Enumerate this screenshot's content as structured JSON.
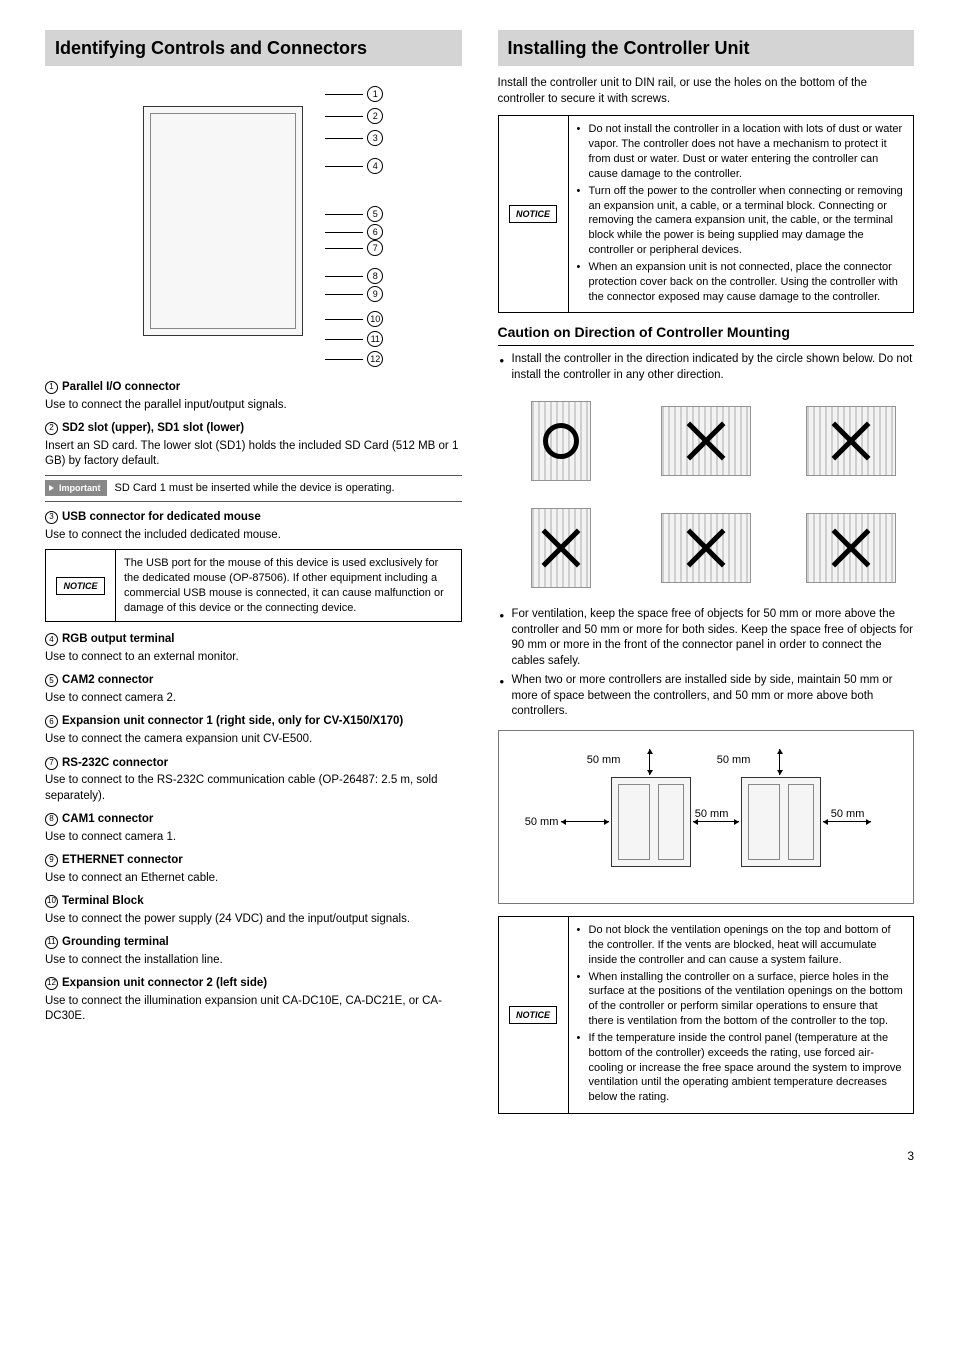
{
  "colors": {
    "heading_bg": "#d4d4d4",
    "text": "#000000",
    "notice_tag_bg": "#888888"
  },
  "left": {
    "heading": "Identifying Controls and Connectors",
    "callout_numbers": [
      "1",
      "2",
      "3",
      "4",
      "5",
      "6",
      "7",
      "8",
      "9",
      "10",
      "11",
      "12"
    ],
    "items": [
      {
        "num": "1",
        "title": "Parallel I/O connector",
        "desc": "Use to connect the parallel input/output signals."
      },
      {
        "num": "2",
        "title": "SD2 slot (upper), SD1 slot (lower)",
        "desc": "Insert an SD card.\nThe lower slot (SD1) holds the included SD Card (512 MB or 1 GB) by factory default.",
        "important": "SD Card 1 must be inserted while the device is operating.",
        "divider_after": true
      },
      {
        "num": "3",
        "title": "USB connector for dedicated mouse",
        "desc": "Use to connect the included dedicated mouse.",
        "notice": "The USB port for the mouse of this device is used exclusively for the dedicated mouse (OP-87506).\nIf other equipment including a commercial USB mouse is connected, it can cause malfunction or damage of this device or the connecting device."
      },
      {
        "num": "4",
        "title": "RGB output terminal",
        "desc": "Use to connect to an external monitor."
      },
      {
        "num": "5",
        "title": "CAM2 connector",
        "desc": "Use to connect camera 2."
      },
      {
        "num": "6",
        "title": "Expansion unit connector 1 (right side, only for CV-X150/X170)",
        "desc": "Use to connect the camera expansion unit CV-E500."
      },
      {
        "num": "7",
        "title": "RS-232C connector",
        "desc": "Use to connect to the RS-232C communication cable (OP-26487: 2.5 m, sold separately)."
      },
      {
        "num": "8",
        "title": "CAM1 connector",
        "desc": "Use to connect camera 1."
      },
      {
        "num": "9",
        "title": "ETHERNET connector",
        "desc": "Use to connect an Ethernet cable."
      },
      {
        "num": "10",
        "title": "Terminal Block",
        "desc": "Use to connect the power supply (24 VDC) and the input/output signals."
      },
      {
        "num": "11",
        "title": "Grounding terminal",
        "desc": "Use to connect the installation line."
      },
      {
        "num": "12",
        "title": "Expansion unit connector 2 (left side)",
        "desc": "Use to connect the illumination expansion unit CA-DC10E, CA-DC21E, or CA-DC30E."
      }
    ],
    "important_label": "Important",
    "notice_label": "NOTICE"
  },
  "right": {
    "heading": "Installing the Controller Unit",
    "intro": "Install the controller unit to DIN rail, or use the holes on the bottom of the controller to secure it with screws.",
    "notice1_bullets": [
      "Do not install the controller in a location with lots of dust or water vapor.\nThe controller does not have a mechanism to protect it from dust or water. Dust or water entering the controller can cause damage to the controller.",
      "Turn off the power to the controller when connecting or removing an expansion unit, a cable, or a terminal block. Connecting or removing the camera expansion unit, the cable, or the terminal block while the power is being supplied may damage the controller or peripheral devices.",
      "When an expansion unit is not connected, place the connector protection cover back on the controller. Using the controller with the connector exposed may cause damage to the controller."
    ],
    "subhead": "Caution on Direction of Controller Mounting",
    "mount_bullet": "Install the controller in the direction indicated by the circle shown below. Do not install the controller in any other direction.",
    "orientations": [
      {
        "mark": "ok",
        "shape": "tall"
      },
      {
        "mark": "x",
        "shape": "wide"
      },
      {
        "mark": "x",
        "shape": "wide"
      },
      {
        "mark": "x",
        "shape": "tall"
      },
      {
        "mark": "x",
        "shape": "wide"
      },
      {
        "mark": "x",
        "shape": "wide"
      }
    ],
    "vent_bullets": [
      "For ventilation, keep the space free of objects for 50 mm or more above the controller and 50 mm or more for both sides. Keep the space free of objects for 90 mm or more in the front of the connector panel in order to connect the cables safely.",
      "When two or more controllers are installed side by side, maintain 50 mm or more of space between the controllers, and 50 mm or more above both controllers."
    ],
    "spacing_labels": {
      "top_a": "50 mm",
      "top_b": "50 mm",
      "left": "50 mm",
      "mid": "50 mm",
      "right": "50 mm"
    },
    "notice2_bullets": [
      "Do not block the ventilation openings on the top and bottom of the controller. If the vents are blocked, heat will accumulate inside the controller and can cause a system failure.",
      "When installing the controller on a surface, pierce holes in the surface at the positions of the ventilation openings on the bottom of the controller or perform similar operations to ensure that there is ventilation from the bottom of the controller to the top.",
      "If the temperature inside the control panel (temperature at the bottom of the controller) exceeds the rating, use forced air-cooling or increase the free space around the system to improve ventilation until the operating ambient temperature decreases below the rating."
    ],
    "notice_label": "NOTICE"
  },
  "page_number": "3"
}
